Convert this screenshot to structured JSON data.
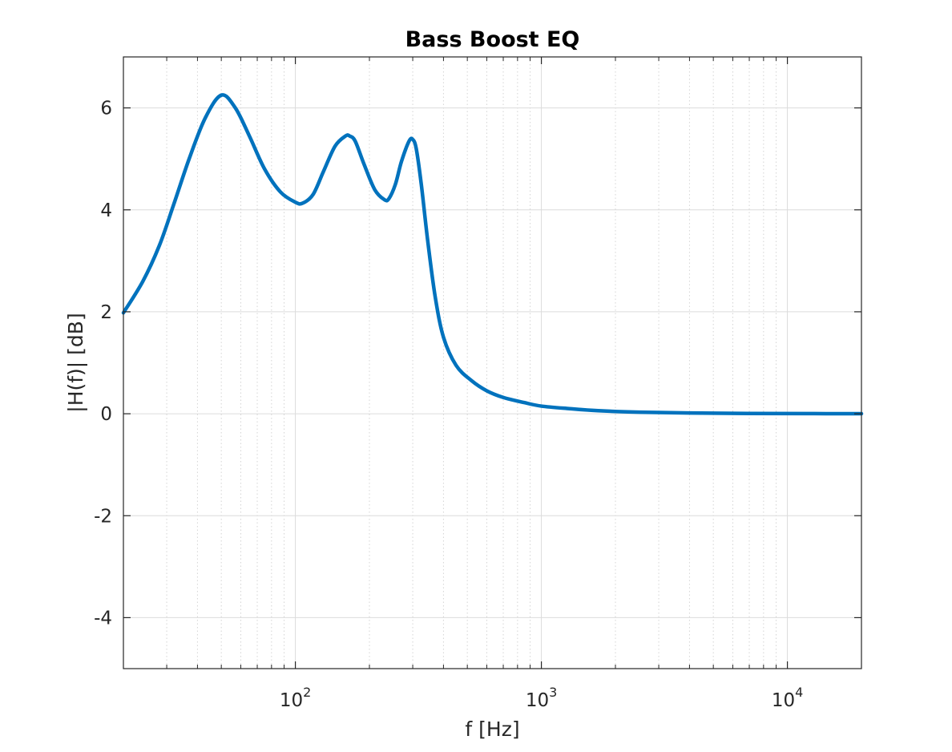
{
  "chart_data": {
    "type": "line",
    "title": "Bass Boost EQ",
    "xlabel": "f [Hz]",
    "ylabel": "|H(f)| [dB]",
    "xscale": "log",
    "xlim": [
      20,
      20000
    ],
    "ylim": [
      -5,
      7
    ],
    "x_ticks": [
      {
        "value": 100,
        "base": "10",
        "exp": "2"
      },
      {
        "value": 1000,
        "base": "10",
        "exp": "3"
      },
      {
        "value": 10000,
        "base": "10",
        "exp": "4"
      }
    ],
    "y_ticks": [
      {
        "value": -4,
        "label": "-4"
      },
      {
        "value": -2,
        "label": "-2"
      },
      {
        "value": 0,
        "label": "0"
      },
      {
        "value": 2,
        "label": "2"
      },
      {
        "value": 4,
        "label": "4"
      },
      {
        "value": 6,
        "label": "6"
      }
    ],
    "grid": true,
    "minor_grid": true,
    "line_color": "#0072BD",
    "series": [
      {
        "x": [
          20,
          24,
          28,
          32,
          37,
          43,
          50,
          57,
          65,
          75,
          87,
          100,
          107,
          118,
          130,
          145,
          160,
          166,
          175,
          190,
          210,
          230,
          240,
          255,
          270,
          290,
          300,
          310,
          325,
          345,
          370,
          400,
          450,
          520,
          600,
          700,
          850,
          1000,
          1300,
          1700,
          2500,
          4000,
          7000,
          12000,
          20000
        ],
        "y": [
          1.98,
          2.6,
          3.3,
          4.1,
          5.0,
          5.8,
          6.25,
          6.0,
          5.45,
          4.8,
          4.35,
          4.15,
          4.13,
          4.3,
          4.75,
          5.25,
          5.45,
          5.45,
          5.35,
          4.9,
          4.4,
          4.2,
          4.22,
          4.5,
          4.95,
          5.35,
          5.38,
          5.2,
          4.5,
          3.4,
          2.3,
          1.5,
          0.95,
          0.65,
          0.45,
          0.32,
          0.22,
          0.15,
          0.1,
          0.06,
          0.03,
          0.015,
          0.006,
          0.003,
          0.001
        ]
      }
    ]
  }
}
